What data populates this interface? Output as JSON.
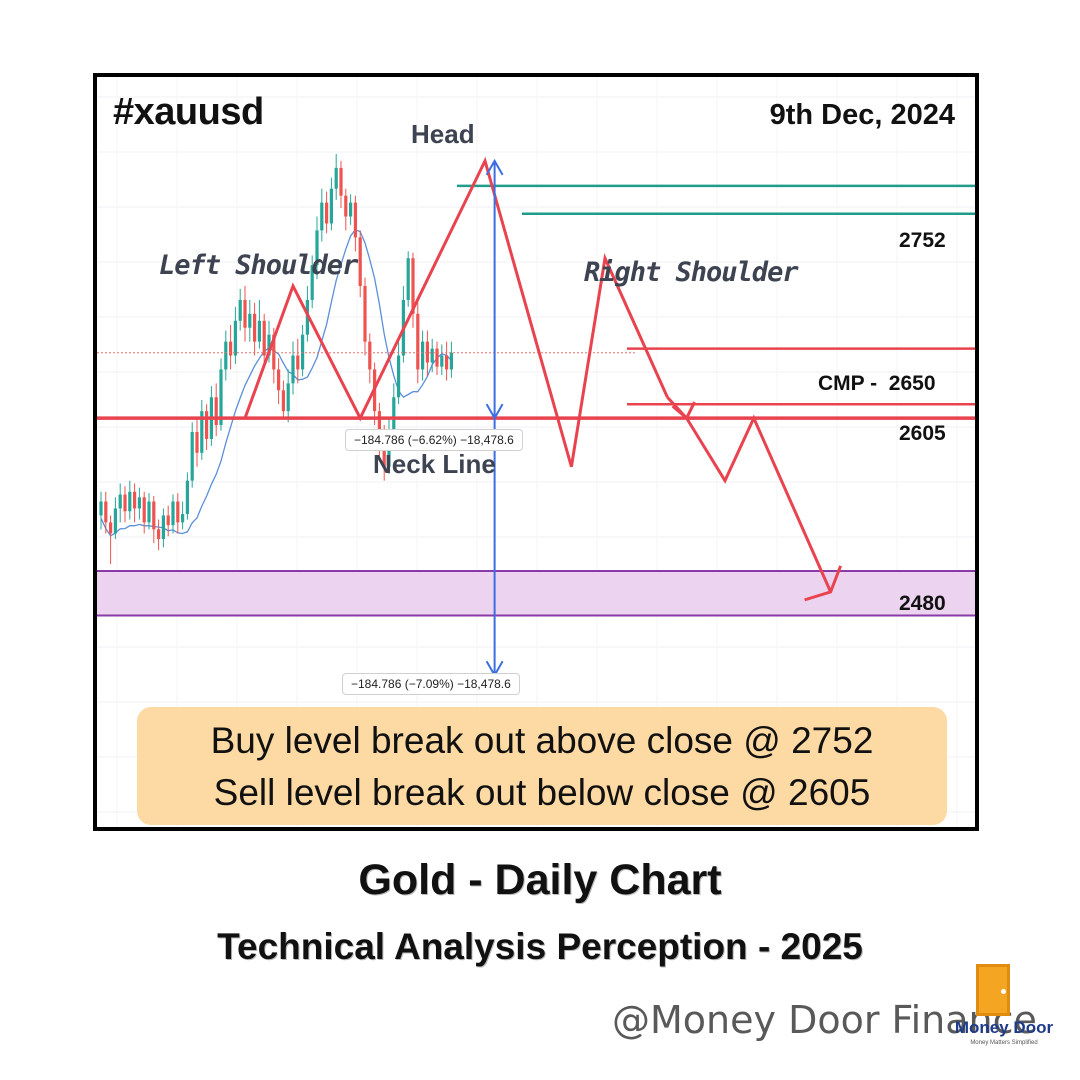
{
  "header": {
    "ticker": "#xauusd",
    "date": "9th Dec, 2024"
  },
  "pattern_labels": {
    "head": "Head",
    "left_shoulder": "Left Shoulder",
    "right_shoulder": "Right Shoulder",
    "neck_line": "Neck Line"
  },
  "measurements": {
    "upper": "−184.786 (−6.62%) −18,478.6",
    "lower": "−184.786 (−7.09%) −18,478.6"
  },
  "callout": {
    "line1": "Buy level break out above close @ 2752",
    "line2": "Sell level break out below close @ 2605"
  },
  "titles": {
    "main": "Gold - Daily Chart",
    "sub": "Technical Analysis Perception - 2025"
  },
  "watermark": "@Money  Door Finance",
  "logo": {
    "name": "Money Door",
    "tagline": "Money Matters Simplified"
  },
  "colors": {
    "bull": "#26a69a",
    "bear": "#ef5350",
    "pattern_line": "#e8434f",
    "level_line": "#1f9c8a",
    "ma_line": "#5b8fd9",
    "measure_arrow": "#3b6fe0",
    "zone_fill": "#ecd3f0",
    "zone_border": "#8a3ba8",
    "callout_bg": "#fdd9a3"
  },
  "chart_data": {
    "type": "candlestick",
    "instrument": "Gold",
    "timeframe": "Daily",
    "levels": [
      {
        "label": "2752",
        "value": 2752,
        "kind": "resistance"
      },
      {
        "label": "CMP -  2650",
        "value": 2650,
        "kind": "current-price"
      },
      {
        "label": "2605",
        "value": 2605,
        "kind": "neckline"
      },
      {
        "label": "2480",
        "value": 2480,
        "kind": "target-zone"
      }
    ],
    "ylim": [
      2390,
      2800
    ],
    "pattern": "head-and-shoulders",
    "pattern_points": [
      {
        "name": "left-shoulder",
        "x": 40,
        "y": 2700
      },
      {
        "name": "neck-left",
        "x": 54,
        "y": 2605
      },
      {
        "name": "head",
        "x": 80,
        "y": 2790
      },
      {
        "name": "neck-right",
        "x": 98,
        "y": 2570
      },
      {
        "name": "right-shoulder",
        "x": 105,
        "y": 2720
      },
      {
        "name": "breakdown",
        "x": 118,
        "y": 2620
      }
    ],
    "projection": [
      {
        "x": 118,
        "y": 2620
      },
      {
        "x": 122,
        "y": 2605
      },
      {
        "x": 130,
        "y": 2560
      },
      {
        "x": 136,
        "y": 2605
      },
      {
        "x": 152,
        "y": 2480
      }
    ],
    "measurement_arrow": {
      "x": 82,
      "from": 2790,
      "to": 2420
    },
    "candles": [
      [
        0,
        2535,
        2545,
        2525,
        2552
      ],
      [
        1,
        2545,
        2530,
        2522,
        2552
      ],
      [
        2,
        2530,
        2522,
        2500,
        2535
      ],
      [
        3,
        2522,
        2540,
        2518,
        2548
      ],
      [
        4,
        2540,
        2550,
        2530,
        2558
      ],
      [
        5,
        2550,
        2538,
        2530,
        2556
      ],
      [
        6,
        2538,
        2552,
        2532,
        2560
      ],
      [
        7,
        2552,
        2540,
        2530,
        2558
      ],
      [
        8,
        2540,
        2548,
        2532,
        2555
      ],
      [
        9,
        2548,
        2530,
        2522,
        2552
      ],
      [
        10,
        2530,
        2545,
        2525,
        2551
      ],
      [
        11,
        2545,
        2525,
        2515,
        2549
      ],
      [
        12,
        2525,
        2518,
        2510,
        2532
      ],
      [
        13,
        2518,
        2535,
        2512,
        2540
      ],
      [
        14,
        2535,
        2528,
        2520,
        2542
      ],
      [
        15,
        2528,
        2545,
        2522,
        2550
      ],
      [
        16,
        2545,
        2530,
        2522,
        2551
      ],
      [
        17,
        2530,
        2536,
        2525,
        2545
      ],
      [
        18,
        2536,
        2560,
        2532,
        2566
      ],
      [
        19,
        2560,
        2595,
        2555,
        2602
      ],
      [
        20,
        2595,
        2580,
        2570,
        2605
      ],
      [
        21,
        2580,
        2610,
        2575,
        2618
      ],
      [
        22,
        2610,
        2590,
        2582,
        2615
      ],
      [
        23,
        2590,
        2620,
        2585,
        2628
      ],
      [
        24,
        2620,
        2600,
        2592,
        2630
      ],
      [
        25,
        2600,
        2640,
        2596,
        2648
      ],
      [
        26,
        2640,
        2660,
        2632,
        2668
      ],
      [
        27,
        2660,
        2650,
        2640,
        2672
      ],
      [
        28,
        2650,
        2675,
        2644,
        2685
      ],
      [
        29,
        2675,
        2690,
        2668,
        2698
      ],
      [
        30,
        2690,
        2670,
        2660,
        2700
      ],
      [
        31,
        2670,
        2680,
        2660,
        2690
      ],
      [
        32,
        2680,
        2660,
        2650,
        2688
      ],
      [
        33,
        2660,
        2675,
        2655,
        2690
      ],
      [
        34,
        2675,
        2650,
        2642,
        2680
      ],
      [
        35,
        2650,
        2665,
        2645,
        2675
      ],
      [
        36,
        2665,
        2640,
        2630,
        2670
      ],
      [
        37,
        2640,
        2625,
        2615,
        2648
      ],
      [
        38,
        2625,
        2610,
        2604,
        2632
      ],
      [
        39,
        2610,
        2630,
        2602,
        2640
      ],
      [
        40,
        2630,
        2650,
        2622,
        2660
      ],
      [
        41,
        2650,
        2640,
        2630,
        2662
      ],
      [
        42,
        2640,
        2665,
        2635,
        2672
      ],
      [
        43,
        2665,
        2690,
        2660,
        2700
      ],
      [
        44,
        2690,
        2715,
        2684,
        2722
      ],
      [
        45,
        2715,
        2740,
        2705,
        2750
      ],
      [
        46,
        2740,
        2760,
        2732,
        2770
      ],
      [
        47,
        2760,
        2745,
        2738,
        2768
      ],
      [
        48,
        2745,
        2770,
        2740,
        2778
      ],
      [
        49,
        2770,
        2785,
        2762,
        2795
      ],
      [
        50,
        2785,
        2765,
        2756,
        2790
      ],
      [
        51,
        2765,
        2750,
        2740,
        2770
      ],
      [
        52,
        2750,
        2760,
        2744,
        2766
      ],
      [
        53,
        2760,
        2735,
        2725,
        2765
      ],
      [
        54,
        2735,
        2700,
        2692,
        2740
      ],
      [
        55,
        2700,
        2660,
        2650,
        2706
      ],
      [
        56,
        2660,
        2640,
        2630,
        2666
      ],
      [
        57,
        2640,
        2610,
        2600,
        2645
      ],
      [
        58,
        2610,
        2585,
        2575,
        2616
      ],
      [
        59,
        2585,
        2570,
        2560,
        2600
      ],
      [
        60,
        2570,
        2595,
        2565,
        2604
      ],
      [
        61,
        2595,
        2620,
        2590,
        2630
      ],
      [
        62,
        2620,
        2650,
        2615,
        2660
      ],
      [
        63,
        2650,
        2690,
        2645,
        2700
      ],
      [
        64,
        2690,
        2720,
        2685,
        2725
      ],
      [
        65,
        2720,
        2680,
        2670,
        2724
      ],
      [
        66,
        2680,
        2640,
        2630,
        2690
      ],
      [
        67,
        2640,
        2660,
        2632,
        2668
      ],
      [
        68,
        2660,
        2645,
        2635,
        2668
      ],
      [
        69,
        2645,
        2655,
        2638,
        2662
      ],
      [
        70,
        2655,
        2642,
        2636,
        2660
      ],
      [
        71,
        2642,
        2650,
        2636,
        2658
      ],
      [
        72,
        2650,
        2640,
        2632,
        2660
      ],
      [
        73,
        2640,
        2652,
        2634,
        2660
      ]
    ]
  }
}
